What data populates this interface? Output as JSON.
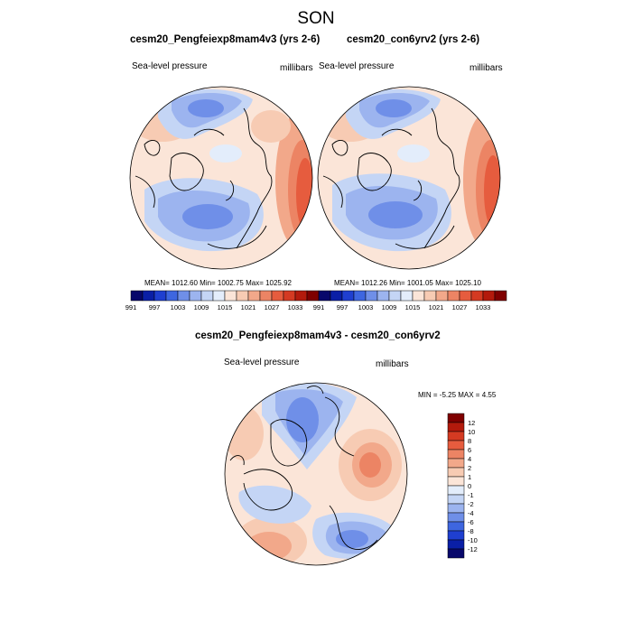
{
  "figure": {
    "title": "SON",
    "panels": [
      {
        "title": "cesm20_Pengfeiexp8mam4v3 (yrs 2-6)",
        "left_label": "Sea-level pressure",
        "right_label": "millibars",
        "stats": "MEAN= 1012.60  Min= 1002.75  Max= 1025.92"
      },
      {
        "title": "cesm20_con6yrv2 (yrs 2-6)",
        "left_label": "Sea-level pressure",
        "right_label": "millibars",
        "stats": "MEAN= 1012.26  Min= 1001.05  Max= 1025.10"
      },
      {
        "title": "cesm20_Pengfeiexp8mam4v3 - cesm20_con6yrv2",
        "left_label": "Sea-level pressure",
        "right_label": "millibars",
        "stats": "MIN =  -5.25 MAX =   4.55"
      }
    ],
    "horizontal_colorbar": {
      "labels": [
        "991",
        "997",
        "1003",
        "1009",
        "1015",
        "1021",
        "1027",
        "1033"
      ],
      "colors": [
        "#08086b",
        "#0a1fa6",
        "#1f3fd0",
        "#3e66e0",
        "#6f8fe8",
        "#9cb4ef",
        "#c4d5f5",
        "#e3edfb",
        "#fbe5d8",
        "#f7cbb3",
        "#f2a88a",
        "#ec8464",
        "#e65c3e",
        "#d43a22",
        "#b31a0c",
        "#7f0000"
      ]
    },
    "diff_colorbar": {
      "labels": [
        "12",
        "10",
        "8",
        "6",
        "4",
        "2",
        "1",
        "0",
        "-1",
        "-2",
        "-4",
        "-6",
        "-8",
        "-10",
        "-12"
      ],
      "colors": [
        "#7f0000",
        "#b31a0c",
        "#d43a22",
        "#e65c3e",
        "#ec8464",
        "#f2a88a",
        "#f7cbb3",
        "#fbe5d8",
        "#e3edfb",
        "#c4d5f5",
        "#9cb4ef",
        "#6f8fe8",
        "#3e66e0",
        "#1f3fd0",
        "#0a1fa6",
        "#08086b"
      ]
    }
  }
}
